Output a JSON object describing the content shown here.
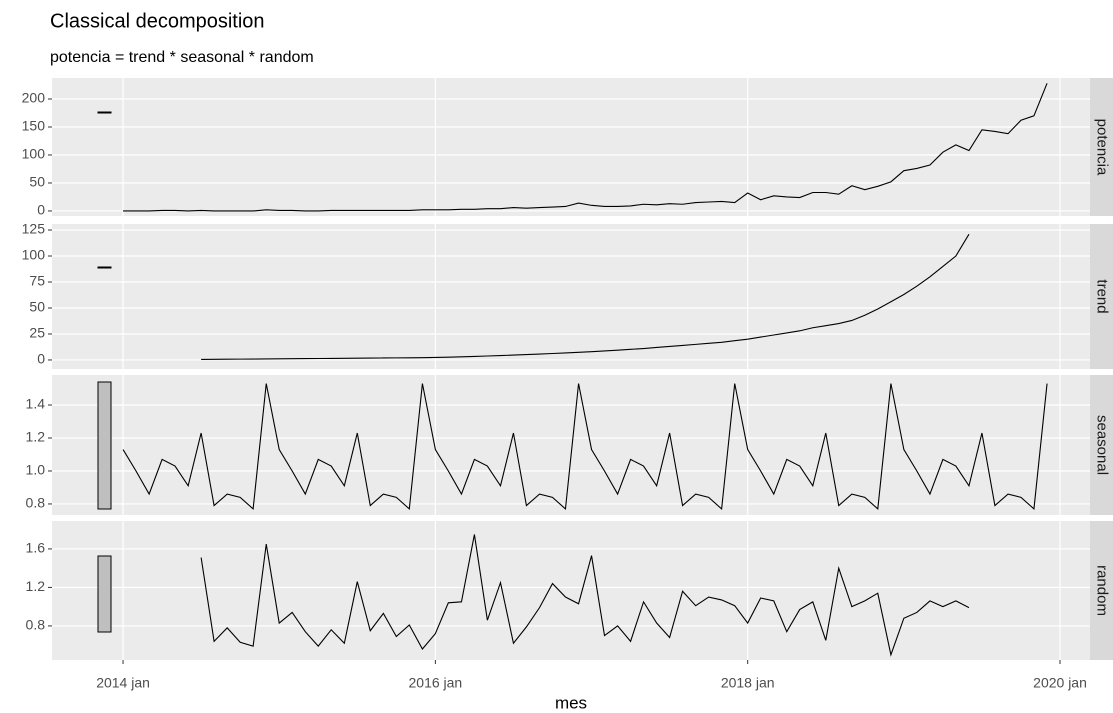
{
  "chart_data": {
    "type": "line",
    "title": "Classical decomposition",
    "subtitle": "potencia = trend * seasonal * random",
    "x_label": "mes",
    "color": "#000000",
    "grid": true,
    "x": [
      2014,
      2014.083,
      2014.167,
      2014.25,
      2014.333,
      2014.417,
      2014.5,
      2014.583,
      2014.667,
      2014.75,
      2014.833,
      2014.917,
      2015,
      2015.083,
      2015.167,
      2015.25,
      2015.333,
      2015.417,
      2015.5,
      2015.583,
      2015.667,
      2015.75,
      2015.833,
      2015.917,
      2016,
      2016.083,
      2016.167,
      2016.25,
      2016.333,
      2016.417,
      2016.5,
      2016.583,
      2016.667,
      2016.75,
      2016.833,
      2016.917,
      2017,
      2017.083,
      2017.167,
      2017.25,
      2017.333,
      2017.417,
      2017.5,
      2017.583,
      2017.667,
      2017.75,
      2017.833,
      2017.917,
      2018,
      2018.083,
      2018.167,
      2018.25,
      2018.333,
      2018.417,
      2018.5,
      2018.583,
      2018.667,
      2018.75,
      2018.833,
      2018.917,
      2019,
      2019.083,
      2019.167,
      2019.25,
      2019.333,
      2019.417,
      2019.5,
      2019.583,
      2019.667,
      2019.75,
      2019.833,
      2019.917
    ],
    "xlim": [
      2013.545,
      2020.192
    ],
    "xticks": [
      {
        "value": 2014,
        "label": "2014 jan"
      },
      {
        "value": 2016,
        "label": "2016 jan"
      },
      {
        "value": 2018,
        "label": "2018 jan"
      },
      {
        "value": 2020,
        "label": "2020 jan"
      }
    ],
    "facets": [
      {
        "name": "potencia",
        "ylim": [
          -9,
          237.5
        ],
        "yticks": [
          0,
          50,
          100,
          150,
          200
        ],
        "values": [
          0,
          0,
          0,
          1,
          1,
          0,
          1,
          0,
          0,
          0,
          0,
          2,
          1,
          1,
          0,
          0,
          1,
          1,
          1,
          1,
          1,
          1,
          1,
          2,
          2,
          2,
          3,
          3,
          4,
          4,
          6,
          5,
          6,
          7,
          8,
          14,
          10,
          8,
          8,
          9,
          12,
          11,
          13,
          12,
          15,
          16,
          17,
          15,
          32,
          20,
          27,
          25,
          24,
          33,
          33,
          30,
          45,
          38,
          44,
          52,
          72,
          76,
          82,
          105,
          118,
          108,
          145,
          142,
          138,
          162,
          170,
          228
        ]
      },
      {
        "name": "trend",
        "ylim": [
          -8.7,
          130.8
        ],
        "yticks": [
          0,
          25,
          50,
          75,
          100,
          125
        ],
        "values": [
          null,
          null,
          null,
          null,
          null,
          null,
          0.5,
          0.6,
          0.7,
          0.8,
          0.9,
          1.0,
          1.1,
          1.2,
          1.3,
          1.4,
          1.5,
          1.6,
          1.7,
          1.8,
          1.9,
          2.0,
          2.1,
          2.2,
          2.4,
          2.7,
          3.0,
          3.4,
          3.8,
          4.2,
          4.7,
          5.2,
          5.7,
          6.2,
          6.8,
          7.4,
          8,
          8.7,
          9.4,
          10.2,
          11,
          12,
          13,
          14,
          15,
          16,
          17,
          18.5,
          20,
          22,
          24,
          26,
          28,
          31,
          33,
          35,
          38,
          43,
          49,
          56,
          63,
          71,
          80,
          90,
          100,
          121,
          null,
          null,
          null,
          null,
          null,
          null
        ]
      },
      {
        "name": "seasonal",
        "ylim": [
          0.733,
          1.582
        ],
        "yticks": [
          0.8,
          {
            "value": 1,
            "label": "1.0"
          },
          1.2,
          1.4
        ],
        "values": [
          1.13,
          1.0,
          0.86,
          1.07,
          1.03,
          0.91,
          1.23,
          0.79,
          0.86,
          0.84,
          0.77,
          1.53,
          1.13,
          1.0,
          0.86,
          1.07,
          1.03,
          0.91,
          1.23,
          0.79,
          0.86,
          0.84,
          0.77,
          1.53,
          1.13,
          1.0,
          0.86,
          1.07,
          1.03,
          0.91,
          1.23,
          0.79,
          0.86,
          0.84,
          0.77,
          1.53,
          1.13,
          1.0,
          0.86,
          1.07,
          1.03,
          0.91,
          1.23,
          0.79,
          0.86,
          0.84,
          0.77,
          1.53,
          1.13,
          1.0,
          0.86,
          1.07,
          1.03,
          0.91,
          1.23,
          0.79,
          0.86,
          0.84,
          0.77,
          1.53,
          1.13,
          1.0,
          0.86,
          1.07,
          1.03,
          0.91,
          1.23,
          0.79,
          0.86,
          0.84,
          0.77,
          1.53
        ]
      },
      {
        "name": "random",
        "ylim": [
          0.446,
          1.89
        ],
        "yticks": [
          0.8,
          1.2,
          1.6
        ],
        "values": [
          null,
          null,
          null,
          null,
          null,
          null,
          1.51,
          0.64,
          0.78,
          0.63,
          0.59,
          1.65,
          0.83,
          0.94,
          0.74,
          0.59,
          0.76,
          0.62,
          1.26,
          0.75,
          0.93,
          0.69,
          0.81,
          0.56,
          0.72,
          1.04,
          1.05,
          1.75,
          0.86,
          1.25,
          0.62,
          0.79,
          0.99,
          1.24,
          1.1,
          1.03,
          1.53,
          0.7,
          0.8,
          0.64,
          1.05,
          0.83,
          0.68,
          1.16,
          1.01,
          1.1,
          1.07,
          1.01,
          0.83,
          1.09,
          1.06,
          0.74,
          0.97,
          1.05,
          0.65,
          1.4,
          1.0,
          1.06,
          1.14,
          0.5,
          0.88,
          0.94,
          1.06,
          1.0,
          1.06,
          0.99,
          null,
          null,
          null,
          null,
          null,
          null
        ]
      }
    ]
  }
}
